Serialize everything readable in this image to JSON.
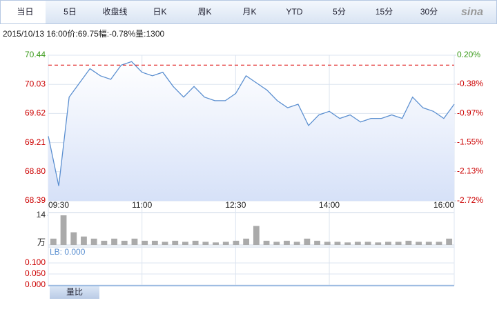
{
  "tabs": [
    "当日",
    "5日",
    "收盘线",
    "日K",
    "周K",
    "月K",
    "YTD",
    "5分",
    "15分",
    "30分"
  ],
  "logo": "sina",
  "info": "2015/10/13 16:00价:69.75幅:-0.78%量:1300",
  "chart_data": [
    {
      "type": "line",
      "categories": [
        "09:30",
        null,
        null,
        null,
        null,
        null,
        null,
        null,
        null,
        "11:00",
        null,
        null,
        null,
        null,
        null,
        null,
        null,
        null,
        "12:30",
        null,
        null,
        null,
        null,
        null,
        null,
        null,
        null,
        "14:00",
        null,
        null,
        null,
        null,
        null,
        null,
        null,
        null,
        null,
        null,
        null,
        "16:00"
      ],
      "series": [
        {
          "color": "#5b8fd0",
          "values": [
            69.3,
            68.6,
            69.85,
            70.05,
            70.25,
            70.15,
            70.1,
            70.3,
            70.35,
            70.2,
            70.15,
            70.2,
            70.0,
            69.85,
            70.0,
            69.85,
            69.8,
            69.8,
            69.9,
            70.15,
            70.05,
            69.95,
            69.8,
            69.7,
            69.75,
            69.45,
            69.6,
            69.65,
            69.55,
            69.6,
            69.5,
            69.55,
            69.55,
            69.6,
            69.55,
            69.85,
            69.7,
            69.65,
            69.55,
            69.75
          ]
        }
      ],
      "ylim": [
        68.39,
        70.44
      ],
      "yticks": [
        70.44,
        70.03,
        69.62,
        69.21,
        {
          "value": 68.8,
          "label": "68.80"
        },
        68.39
      ],
      "y2lim": [
        -2.72,
        0.2
      ],
      "y2ticks": [
        {
          "value": 0.2,
          "label": "0.20%"
        },
        {
          "value": -0.38,
          "label": "-0.38%"
        },
        {
          "value": -0.97,
          "label": "-0.97%"
        },
        {
          "value": -1.55,
          "label": "-1.55%"
        },
        {
          "value": -2.13,
          "label": "-2.13%"
        },
        {
          "value": -2.72,
          "label": "-2.72%"
        }
      ],
      "reference_line": {
        "value": 70.3,
        "color": "#e02020",
        "style": "dashed"
      },
      "up_color": "#3a9a1a",
      "down_color": "#cc0000",
      "grid": true
    },
    {
      "type": "bar",
      "values": [
        3,
        14,
        6,
        4,
        3,
        2,
        3,
        2,
        3,
        2,
        2,
        1.5,
        2,
        1.5,
        2,
        1.5,
        1.2,
        1.5,
        2,
        3,
        9,
        2,
        1.5,
        2,
        1.5,
        3,
        2,
        1.5,
        1.5,
        1.2,
        1.5,
        1.5,
        1.2,
        1.5,
        1.5,
        2,
        1.5,
        1.5,
        1.5,
        3
      ],
      "color": "#aaaaaa",
      "ylim": [
        0,
        14
      ],
      "yticks": [
        14
      ],
      "unit": "万"
    },
    {
      "type": "line",
      "title": "LB: 0.000",
      "ylim": [
        0,
        0.1
      ],
      "yticks": [
        {
          "value": 0.1,
          "label": "0.100"
        },
        {
          "value": 0.05,
          "label": "0.050"
        },
        {
          "value": 0,
          "label": "0.000"
        }
      ],
      "button": "量比"
    }
  ]
}
